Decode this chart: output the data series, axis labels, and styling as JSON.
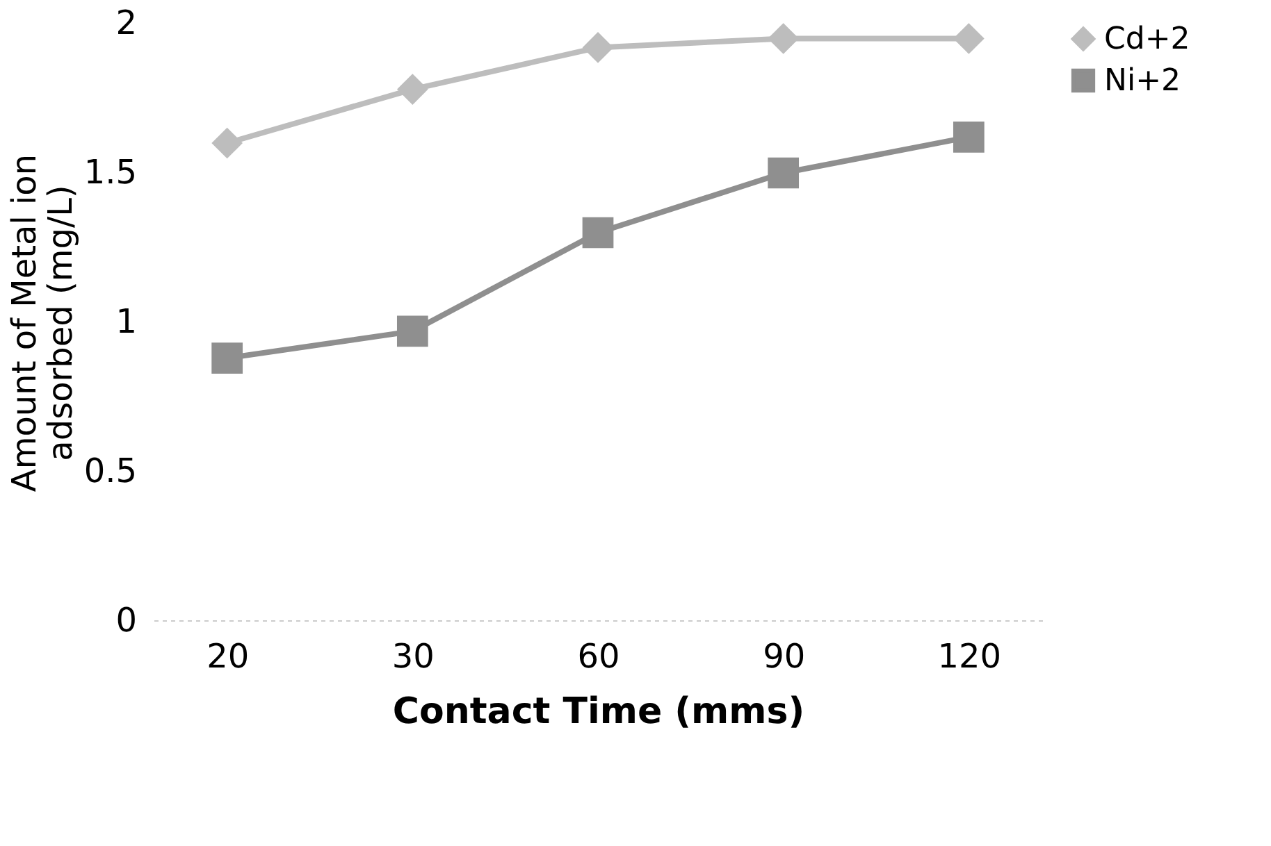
{
  "chart_data": {
    "type": "line",
    "xlabel": "Contact Time (mms)",
    "ylabel": "Amount of Metal ion adsorbed (mg/L)",
    "categories": [
      "20",
      "30",
      "60",
      "90",
      "120"
    ],
    "series": [
      {
        "name": "Cd+2",
        "color": "#bdbdbd",
        "marker": "diamond",
        "values": [
          1.6,
          1.78,
          1.92,
          1.95,
          1.95
        ]
      },
      {
        "name": "Ni+2",
        "color": "#8f8f8f",
        "marker": "square",
        "values": [
          0.88,
          0.97,
          1.3,
          1.5,
          1.62
        ]
      }
    ],
    "ylim": [
      0,
      2
    ],
    "yticks": [
      0,
      0.5,
      1,
      1.5,
      2
    ],
    "grid": false,
    "legend": "right",
    "line_style": "solid"
  }
}
